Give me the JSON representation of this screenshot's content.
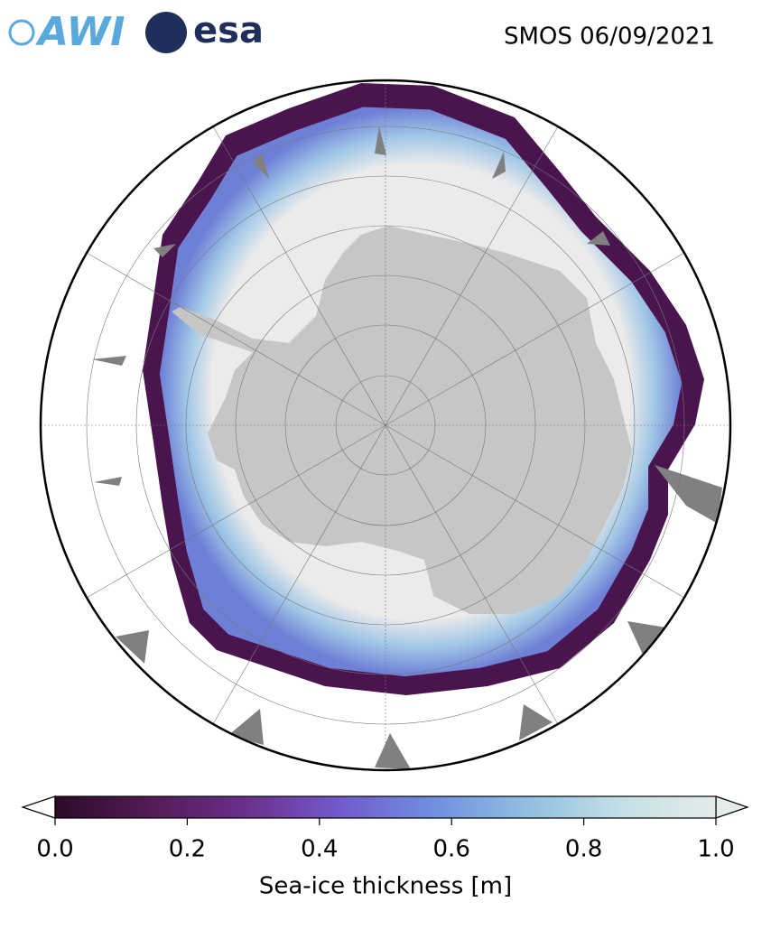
{
  "header": {
    "title": "SMOS 06/09/2021",
    "logos": [
      "AWI",
      "esa"
    ]
  },
  "colorbar": {
    "label": "Sea-ice thickness [m]",
    "lim": [
      0,
      1
    ],
    "ticks": [
      {
        "value": 0,
        "label": "0.0"
      },
      0.2,
      0.4,
      0.6,
      0.8,
      {
        "value": 1,
        "label": "1.0"
      }
    ],
    "colormap": [
      "#2b0b28",
      "#531a55",
      "#6a2f8a",
      "#7359cc",
      "#6f8fe0",
      "#8fbfe0",
      "#c4e0e6",
      "#e4ebea"
    ]
  }
}
